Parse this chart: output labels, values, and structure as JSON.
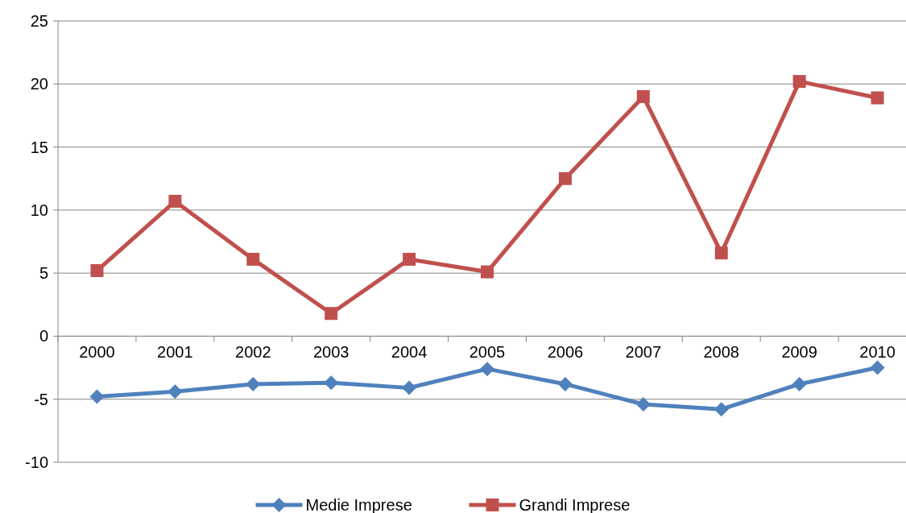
{
  "chart_data": {
    "type": "line",
    "categories": [
      "2000",
      "2001",
      "2002",
      "2003",
      "2004",
      "2005",
      "2006",
      "2007",
      "2008",
      "2009",
      "2010"
    ],
    "series": [
      {
        "name": "Medie Imprese",
        "color": "#4f81bd",
        "marker": "diamond",
        "values": [
          -4.8,
          -4.4,
          -3.8,
          -3.7,
          -4.1,
          -2.6,
          -3.8,
          -5.4,
          -5.8,
          -3.8,
          -2.5
        ]
      },
      {
        "name": "Grandi Imprese",
        "color": "#c0504d",
        "marker": "square",
        "values": [
          5.2,
          10.7,
          6.1,
          1.8,
          6.1,
          5.1,
          12.5,
          19.0,
          6.6,
          20.2,
          18.9
        ]
      }
    ],
    "ylim": [
      -10,
      25
    ],
    "yticks": [
      -10,
      -5,
      0,
      5,
      10,
      15,
      20,
      25
    ],
    "grid": "y",
    "legend": "bottom"
  }
}
